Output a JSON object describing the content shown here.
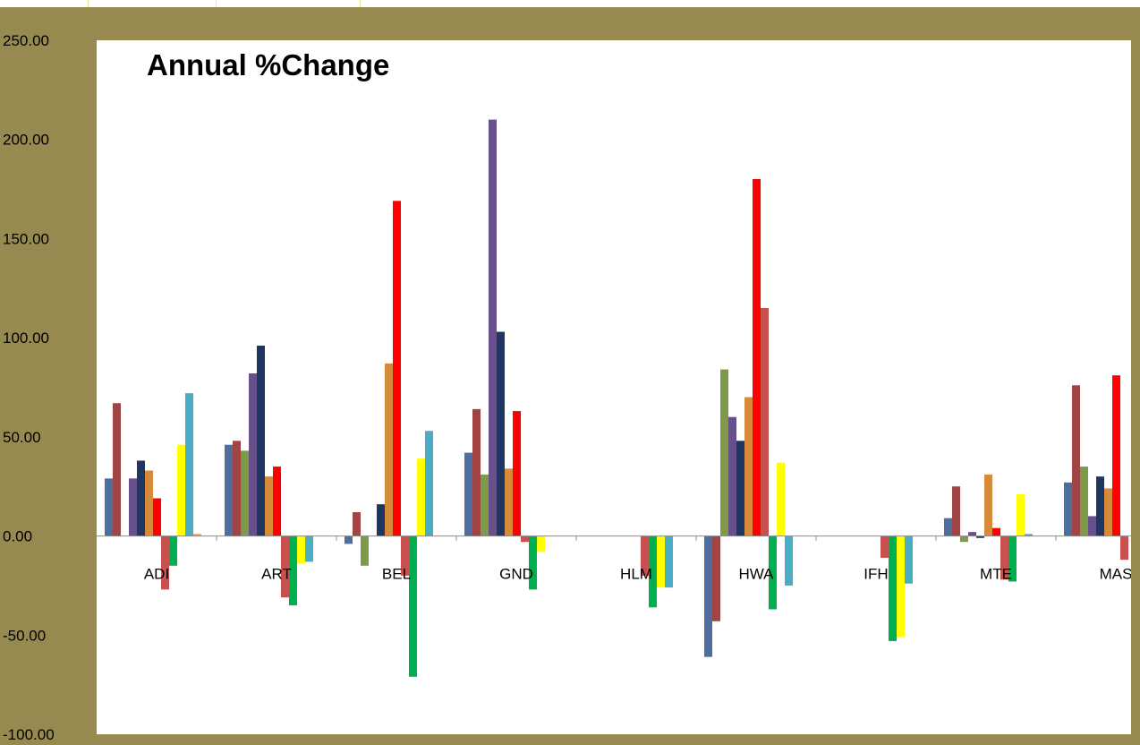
{
  "chart_data": {
    "type": "bar",
    "title": "Annual %Change",
    "xlabel": "",
    "ylabel": "",
    "ylim": [
      -100,
      250
    ],
    "yticks": [
      "250.00",
      "200.00",
      "150.00",
      "100.00",
      "50.00",
      "0.00",
      "-50.00",
      "-100.00"
    ],
    "ytick_values": [
      250,
      200,
      150,
      100,
      50,
      0,
      -50,
      -100
    ],
    "grid": false,
    "legend": "none",
    "categories": [
      "ADI",
      "ART",
      "BEL",
      "GND",
      "HLM",
      "HWA",
      "IFH",
      "MTE",
      "MAS"
    ],
    "series_colors": [
      "#4f6e9f",
      "#a04444",
      "#7e9a48",
      "#68508c",
      "#1f3760",
      "#d78a3a",
      "#ff0000",
      "#c8504e",
      "#00b050",
      "#ffff00",
      "#4bacc6",
      "#f79646"
    ],
    "series": [
      {
        "values": [
          29,
          46,
          -4,
          42,
          0,
          -61,
          0,
          9,
          27
        ]
      },
      {
        "values": [
          67,
          48,
          12,
          64,
          0,
          -43,
          0,
          25,
          76
        ]
      },
      {
        "values": [
          0,
          43,
          -15,
          31,
          0,
          84,
          0,
          -3,
          35
        ]
      },
      {
        "values": [
          29,
          82,
          0,
          210,
          0,
          60,
          0,
          2,
          10
        ]
      },
      {
        "values": [
          38,
          96,
          16,
          103,
          0,
          48,
          0,
          -1,
          30
        ]
      },
      {
        "values": [
          33,
          30,
          87,
          34,
          0,
          70,
          0,
          31,
          24
        ]
      },
      {
        "values": [
          19,
          35,
          169,
          63,
          0,
          180,
          0,
          4,
          81
        ]
      },
      {
        "values": [
          -27,
          -31,
          -20,
          -3,
          -20,
          115,
          -11,
          -22,
          -12
        ]
      },
      {
        "values": [
          -15,
          -35,
          -71,
          -27,
          -36,
          -37,
          -53,
          -23,
          0
        ]
      },
      {
        "values": [
          46,
          -14,
          39,
          -8,
          -26,
          37,
          -51,
          21,
          0
        ]
      },
      {
        "values": [
          72,
          -13,
          53,
          0,
          -26,
          -25,
          -24,
          1,
          0
        ]
      },
      {
        "values": [
          1,
          0,
          0,
          0,
          0,
          0,
          0,
          0,
          0
        ]
      }
    ]
  }
}
